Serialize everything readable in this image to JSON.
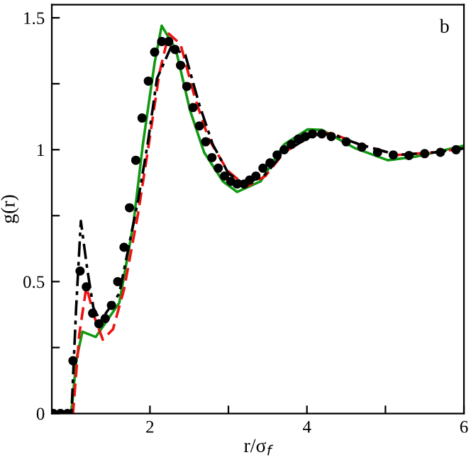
{
  "chart_data": {
    "type": "line",
    "xlabel": "r/σ$_{f}$",
    "ylabel": "g(r)",
    "annotations": [
      "b"
    ],
    "xlim": [
      0.75,
      6
    ],
    "ylim": [
      0,
      1.55
    ],
    "xticks": [
      {
        "value": 1,
        "label": null
      },
      2,
      {
        "value": 3,
        "label": null
      },
      4,
      {
        "value": 5,
        "label": null
      },
      6
    ],
    "yticks": [
      0,
      {
        "value": 0.25,
        "label": null
      },
      0.5,
      {
        "value": 0.75,
        "label": null
      },
      1,
      {
        "value": 1.25,
        "label": null
      },
      1.5
    ],
    "grid": false,
    "legend": false,
    "series": [
      {
        "color": "#119911",
        "line_style": "solid",
        "x": [
          0.75,
          1.0,
          1.06,
          1.14,
          1.31,
          1.61,
          1.79,
          1.91,
          2.06,
          2.15,
          2.33,
          2.51,
          2.69,
          2.93,
          3.11,
          3.41,
          3.71,
          4.01,
          4.19,
          4.61,
          5.03,
          5.39,
          6.0
        ],
        "values": [
          0,
          0,
          0.2,
          0.31,
          0.29,
          0.42,
          0.72,
          1.02,
          1.33,
          1.47,
          1.38,
          1.15,
          0.99,
          0.88,
          0.84,
          0.88,
          1.02,
          1.077,
          1.075,
          1.006,
          0.96,
          0.974,
          1.015
        ]
      },
      {
        "color": "#ee1111",
        "line_style": "dashed",
        "x": [
          0.75,
          1.02,
          1.1,
          1.19,
          1.3,
          1.4,
          1.53,
          1.67,
          1.85,
          1.97,
          2.12,
          2.24,
          2.39,
          2.57,
          2.75,
          2.99,
          3.23,
          3.47,
          3.71,
          4.07,
          4.31,
          4.67,
          5.15,
          5.63,
          6.0
        ],
        "values": [
          0,
          0,
          0.3,
          0.48,
          0.36,
          0.28,
          0.32,
          0.47,
          0.76,
          0.99,
          1.29,
          1.44,
          1.4,
          1.2,
          1.04,
          0.92,
          0.86,
          0.9,
          0.99,
          1.055,
          1.063,
          1.02,
          0.98,
          0.99,
          1.006
        ]
      },
      {
        "color": "#000000",
        "line_style": "dashdot",
        "x": [
          0.75,
          1.0,
          1.06,
          1.12,
          1.2,
          1.28,
          1.37,
          1.61,
          1.85,
          1.97,
          2.09,
          2.27,
          2.45,
          2.63,
          2.8,
          3.0,
          3.2,
          3.45,
          3.71,
          4.07,
          4.31,
          4.67,
          5.15,
          5.63,
          6.0
        ],
        "values": [
          0,
          0,
          0.4,
          0.73,
          0.55,
          0.4,
          0.35,
          0.455,
          0.81,
          1.02,
          1.27,
          1.39,
          1.36,
          1.17,
          1.02,
          0.91,
          0.87,
          0.9,
          0.99,
          1.055,
          1.06,
          1.02,
          0.98,
          0.99,
          1.005
        ]
      },
      {
        "type": "scatter",
        "color": "#000000",
        "marker": "circle",
        "x": [
          0.77,
          0.86,
          0.95,
          1.02,
          1.11,
          1.19,
          1.27,
          1.35,
          1.43,
          1.51,
          1.59,
          1.67,
          1.74,
          1.82,
          1.9,
          1.98,
          2.06,
          2.15,
          2.24,
          2.32,
          2.39,
          2.47,
          2.55,
          2.63,
          2.71,
          2.79,
          2.87,
          2.95,
          3.03,
          3.11,
          3.2,
          3.27,
          3.35,
          3.44,
          3.53,
          3.62,
          3.71,
          3.8,
          3.89,
          3.98,
          4.07,
          4.19,
          4.31,
          4.5,
          4.7,
          4.9,
          5.1,
          5.3,
          5.5,
          5.7,
          5.9
        ],
        "values": [
          0,
          0,
          0,
          0.2,
          0.54,
          0.48,
          0.38,
          0.34,
          0.36,
          0.41,
          0.5,
          0.63,
          0.78,
          0.96,
          1.12,
          1.26,
          1.37,
          1.41,
          1.41,
          1.38,
          1.32,
          1.24,
          1.16,
          1.09,
          1.03,
          0.97,
          0.93,
          0.9,
          0.88,
          0.87,
          0.87,
          0.885,
          0.9,
          0.93,
          0.95,
          0.98,
          1.0,
          1.02,
          1.04,
          1.05,
          1.06,
          1.06,
          1.05,
          1.03,
          1.01,
          0.99,
          0.98,
          0.978,
          0.985,
          0.99,
          1.0
        ]
      }
    ]
  }
}
